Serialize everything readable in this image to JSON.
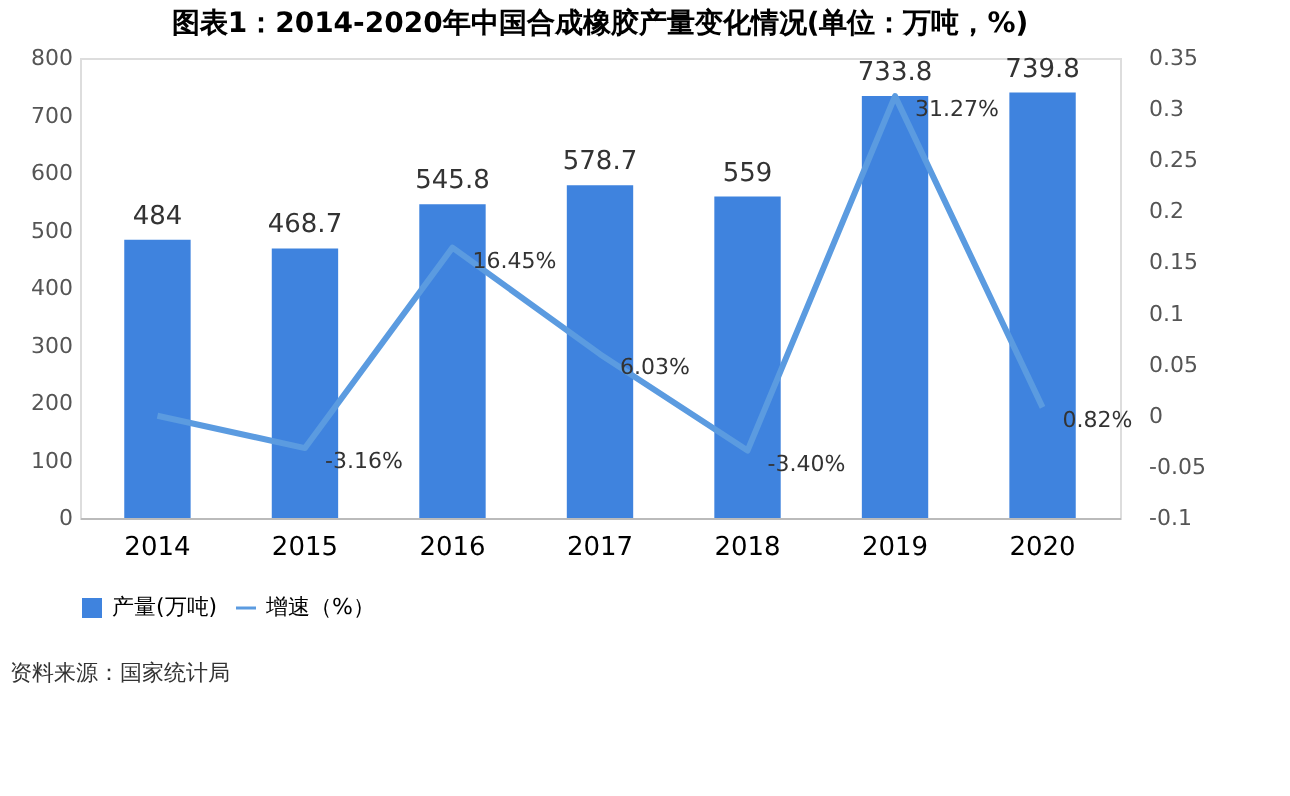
{
  "chart_data": {
    "type": "bar",
    "title": "图表1：2014-2020年中国合成橡胶产量变化情况(单位：万吨，%)",
    "categories": [
      "2014",
      "2015",
      "2016",
      "2017",
      "2018",
      "2019",
      "2020"
    ],
    "series": [
      {
        "name": "产量(万吨)",
        "color": "#3f83de",
        "values": [
          484,
          468.7,
          545.8,
          578.7,
          559,
          733.8,
          739.8
        ]
      },
      {
        "name": "增速（%）",
        "type": "line",
        "axis": "y2",
        "color": "#5b9be0",
        "values": [
          0,
          -0.0316,
          0.1645,
          0.0603,
          -0.034,
          0.3127,
          0.0082
        ],
        "value_labels": [
          null,
          "-3.16%",
          "16.45%",
          "6.03%",
          "-3.40%",
          "31.27%",
          "0.82%"
        ]
      }
    ],
    "ylim": [
      0,
      800
    ],
    "yticks": [
      0,
      100,
      200,
      300,
      400,
      500,
      600,
      700,
      800
    ],
    "y2lim": [
      -0.1,
      0.35
    ],
    "y2ticks": [
      -0.1,
      -0.05,
      0,
      0.05,
      0.1,
      0.15,
      0.2,
      0.25,
      0.3,
      0.35
    ],
    "data_labels": true,
    "grid": false,
    "legend": "bottom",
    "marker": "none",
    "line_style": "solid",
    "annotations": [
      "资料来源：国家统计局"
    ]
  }
}
